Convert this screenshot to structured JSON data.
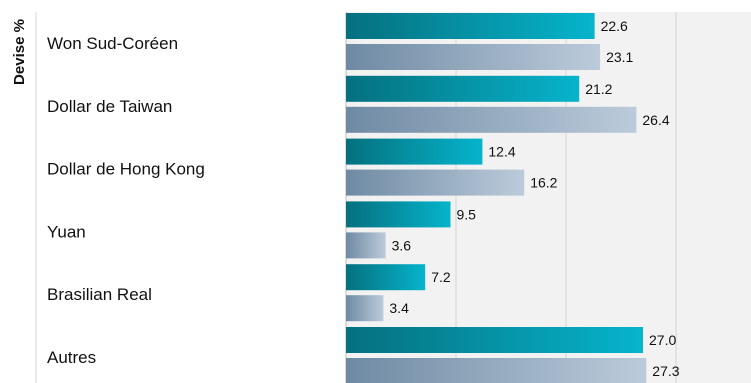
{
  "chart_data": {
    "type": "bar",
    "orientation": "horizontal",
    "ylabel": "Devise %",
    "categories": [
      "Won Sud-Coréen",
      "Dollar de Taiwan",
      "Dollar de Hong Kong",
      "Yuan",
      "Brasilian Real",
      "Autres"
    ],
    "series": [
      {
        "values": [
          22.6,
          21.2,
          12.4,
          9.5,
          7.2,
          27.0
        ],
        "color": "#0a9bb5"
      },
      {
        "values": [
          23.1,
          26.4,
          16.2,
          3.6,
          3.4,
          27.3
        ],
        "color": "#8aa5bd"
      }
    ],
    "value_labels": [
      [
        "22.6",
        "21.2",
        "12.4",
        "9.5",
        "7.2",
        "27.0"
      ],
      [
        "23.1",
        "26.4",
        "16.2",
        "3.6",
        "3.4",
        "27.3"
      ]
    ],
    "xlim": [
      0,
      30
    ],
    "grid": true,
    "plot_background": "#f2f2f2"
  }
}
